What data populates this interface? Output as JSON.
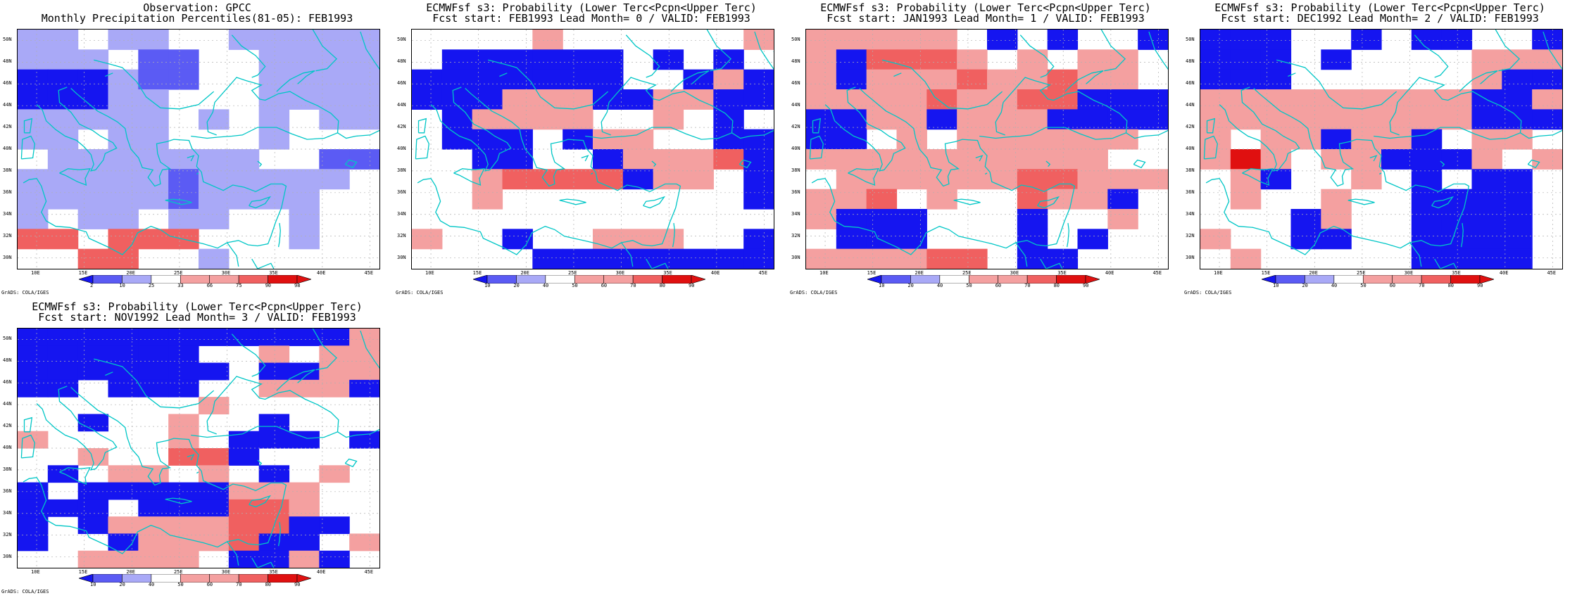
{
  "colors": {
    "dark_blue": "#1515f0",
    "mid_blue": "#5b5bf4",
    "light_blue": "#a9a9f7",
    "light_red": "#f4a0a0",
    "mid_red": "#f06060",
    "dark_red": "#e01010",
    "coast": "#00c6c6",
    "grid": "#b0b0b0"
  },
  "grads_label": "GrADS: COLA/IGES",
  "lon_labels": [
    "10E",
    "15E",
    "20E",
    "25E",
    "30E",
    "35E",
    "40E",
    "45E"
  ],
  "lat_labels": [
    "50N",
    "48N",
    "46N",
    "44N",
    "42N",
    "40N",
    "38N",
    "36N",
    "34N",
    "32N",
    "30N"
  ],
  "panels": [
    {
      "id": "obs",
      "title1": "Observation: GPCC",
      "title2": "Monthly Precipitation Percentiles(81-05): FEB1993",
      "colorbar_labels": [
        "2",
        "10",
        "25",
        "33",
        "66",
        "75",
        "90",
        "98"
      ],
      "grid": [
        "LL.LL..LLLLL",
        "LLL.MM..LLLL",
        "BBBLMM..LLLL",
        "BBBLL...LLLL",
        "LLLLL.L.L.LL",
        "LL.LL...L...",
        ".LLLLLLL..MM",
        "LLLLLMLLLLL.",
        "LLLLLMLLLL..",
        "L.LL.LL..L..",
        "RR.RRR...L..",
        "..RR..L....."
      ]
    },
    {
      "id": "lead0",
      "title1": "ECMWFsf s3: Probability (Lower Terc<Pcpn<Upper Terc)",
      "title2": "Fcst start: FEB1993  Lead Month= 0 / VALID: FEB1993",
      "colorbar_labels": [
        "10",
        "20",
        "40",
        "50",
        "60",
        "70",
        "80",
        "90"
      ],
      "grid": [
        "....L......L",
        ".BBBBBB.B.B.",
        "BBBBBBB..BLB",
        "BBBLLLBBLLBB",
        ".BLLLL..L.B.",
        ".BBB.BLL..BB",
        "..BB..BLLLMB",
        "..LMMMMBLL.B",
        "..L........B",
        "............",
        "L..B..LLL..B",
        "....BBBBBBBB"
      ]
    },
    {
      "id": "lead1",
      "title1": "ECMWFsf s3: Probability (Lower Terc<Pcpn<Upper Terc)",
      "title2": "Fcst start: JAN1993  Lead Month= 1 / VALID: FEB1993",
      "colorbar_labels": [
        "10",
        "20",
        "40",
        "50",
        "60",
        "70",
        "80",
        "90"
      ],
      "grid": [
        "LLLLL.B.B..B",
        "LBMMML.L.LL.",
        "LBLLLMLLMLL.",
        "LLLLMLLMMBBB",
        "BBLLBLLLBBBB",
        "BB.L.LLLLLL.",
        "LLLLLLLLLL..",
        ".LLLLLLMMLLL",
        "LLM.L..MLLB.",
        "LBBB...B..L.",
        ".BBB...B.B..",
        "LLLLMM.BB..."
      ]
    },
    {
      "id": "lead2",
      "title1": "ECMWFsf s3: Probability (Lower Terc<Pcpn<Upper Terc)",
      "title2": "Fcst start: DEC1992  Lead Month= 2 / VALID: FEB1993",
      "colorbar_labels": [
        "10",
        "20",
        "40",
        "50",
        "60",
        "70",
        "80",
        "90"
      ],
      "grid": [
        "BBB..B.BB..B",
        "BBB.B....LLL",
        "BBB......LBB",
        "LLLLLLLLLBBL",
        "LLLLLLLLLBBB",
        "L.LLBLLB.LL.",
        "LDL.LLBBBL.L",
        ".LB..L.B.BB.",
        ".L..L..BBBB.",
        "...BL..BBBB.",
        "L..BB..BBBB.",
        ".L.....BBBB."
      ]
    },
    {
      "id": "lead3",
      "title1": "ECMWFsf s3: Probability (Lower Terc<Pcpn<Upper Terc)",
      "title2": "Fcst start: NOV1992  Lead Month= 3 / VALID: FEB1993",
      "colorbar_labels": [
        "10",
        "20",
        "40",
        "50",
        "60",
        "70",
        "80",
        "90"
      ],
      "grid": [
        "BBBBBBBBBBBL",
        "BBBBBB..L.LL",
        "BBBBBBB.BBLL",
        "BB.BBB..LLLB",
        "......L.....",
        "..B..L..B...",
        "L....L.BBB.B",
        "..L..MMB....",
        ".B.LL.L.B.L.",
        "B.BBBBBLLL..",
        "BBB.BBBMML..",
        "B.BLLLLMMBB.",
        "B..BLLLMBB.L",
        "..LLLL.BBLB."
      ]
    }
  ]
}
